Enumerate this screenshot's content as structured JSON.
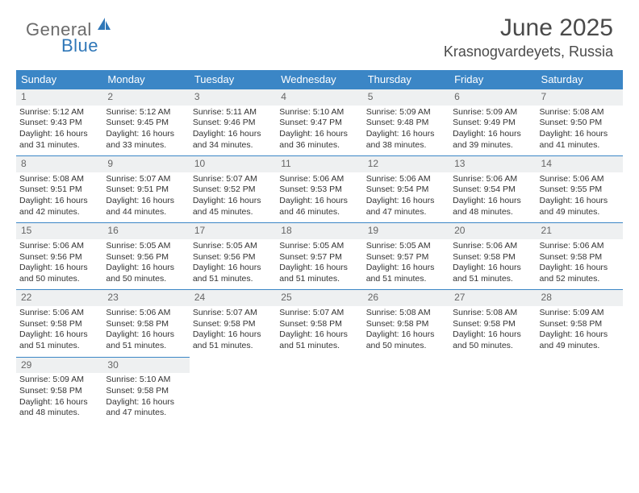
{
  "logo": {
    "general": "General",
    "blue": "Blue"
  },
  "title": "June 2025",
  "location": "Krasnogvardeyets, Russia",
  "colors": {
    "header_bg": "#3b86c6",
    "header_text": "#ffffff",
    "daynum_bg": "#eef0f1",
    "border": "#3b86c6",
    "text": "#333333"
  },
  "day_headers": [
    "Sunday",
    "Monday",
    "Tuesday",
    "Wednesday",
    "Thursday",
    "Friday",
    "Saturday"
  ],
  "weeks": [
    [
      {
        "n": "1",
        "sr": "5:12 AM",
        "ss": "9:43 PM",
        "dl": "16 hours and 31 minutes."
      },
      {
        "n": "2",
        "sr": "5:12 AM",
        "ss": "9:45 PM",
        "dl": "16 hours and 33 minutes."
      },
      {
        "n": "3",
        "sr": "5:11 AM",
        "ss": "9:46 PM",
        "dl": "16 hours and 34 minutes."
      },
      {
        "n": "4",
        "sr": "5:10 AM",
        "ss": "9:47 PM",
        "dl": "16 hours and 36 minutes."
      },
      {
        "n": "5",
        "sr": "5:09 AM",
        "ss": "9:48 PM",
        "dl": "16 hours and 38 minutes."
      },
      {
        "n": "6",
        "sr": "5:09 AM",
        "ss": "9:49 PM",
        "dl": "16 hours and 39 minutes."
      },
      {
        "n": "7",
        "sr": "5:08 AM",
        "ss": "9:50 PM",
        "dl": "16 hours and 41 minutes."
      }
    ],
    [
      {
        "n": "8",
        "sr": "5:08 AM",
        "ss": "9:51 PM",
        "dl": "16 hours and 42 minutes."
      },
      {
        "n": "9",
        "sr": "5:07 AM",
        "ss": "9:51 PM",
        "dl": "16 hours and 44 minutes."
      },
      {
        "n": "10",
        "sr": "5:07 AM",
        "ss": "9:52 PM",
        "dl": "16 hours and 45 minutes."
      },
      {
        "n": "11",
        "sr": "5:06 AM",
        "ss": "9:53 PM",
        "dl": "16 hours and 46 minutes."
      },
      {
        "n": "12",
        "sr": "5:06 AM",
        "ss": "9:54 PM",
        "dl": "16 hours and 47 minutes."
      },
      {
        "n": "13",
        "sr": "5:06 AM",
        "ss": "9:54 PM",
        "dl": "16 hours and 48 minutes."
      },
      {
        "n": "14",
        "sr": "5:06 AM",
        "ss": "9:55 PM",
        "dl": "16 hours and 49 minutes."
      }
    ],
    [
      {
        "n": "15",
        "sr": "5:06 AM",
        "ss": "9:56 PM",
        "dl": "16 hours and 50 minutes."
      },
      {
        "n": "16",
        "sr": "5:05 AM",
        "ss": "9:56 PM",
        "dl": "16 hours and 50 minutes."
      },
      {
        "n": "17",
        "sr": "5:05 AM",
        "ss": "9:56 PM",
        "dl": "16 hours and 51 minutes."
      },
      {
        "n": "18",
        "sr": "5:05 AM",
        "ss": "9:57 PM",
        "dl": "16 hours and 51 minutes."
      },
      {
        "n": "19",
        "sr": "5:05 AM",
        "ss": "9:57 PM",
        "dl": "16 hours and 51 minutes."
      },
      {
        "n": "20",
        "sr": "5:06 AM",
        "ss": "9:58 PM",
        "dl": "16 hours and 51 minutes."
      },
      {
        "n": "21",
        "sr": "5:06 AM",
        "ss": "9:58 PM",
        "dl": "16 hours and 52 minutes."
      }
    ],
    [
      {
        "n": "22",
        "sr": "5:06 AM",
        "ss": "9:58 PM",
        "dl": "16 hours and 51 minutes."
      },
      {
        "n": "23",
        "sr": "5:06 AM",
        "ss": "9:58 PM",
        "dl": "16 hours and 51 minutes."
      },
      {
        "n": "24",
        "sr": "5:07 AM",
        "ss": "9:58 PM",
        "dl": "16 hours and 51 minutes."
      },
      {
        "n": "25",
        "sr": "5:07 AM",
        "ss": "9:58 PM",
        "dl": "16 hours and 51 minutes."
      },
      {
        "n": "26",
        "sr": "5:08 AM",
        "ss": "9:58 PM",
        "dl": "16 hours and 50 minutes."
      },
      {
        "n": "27",
        "sr": "5:08 AM",
        "ss": "9:58 PM",
        "dl": "16 hours and 50 minutes."
      },
      {
        "n": "28",
        "sr": "5:09 AM",
        "ss": "9:58 PM",
        "dl": "16 hours and 49 minutes."
      }
    ],
    [
      {
        "n": "29",
        "sr": "5:09 AM",
        "ss": "9:58 PM",
        "dl": "16 hours and 48 minutes."
      },
      {
        "n": "30",
        "sr": "5:10 AM",
        "ss": "9:58 PM",
        "dl": "16 hours and 47 minutes."
      },
      null,
      null,
      null,
      null,
      null
    ]
  ],
  "labels": {
    "sunrise": "Sunrise:",
    "sunset": "Sunset:",
    "daylight": "Daylight:"
  }
}
